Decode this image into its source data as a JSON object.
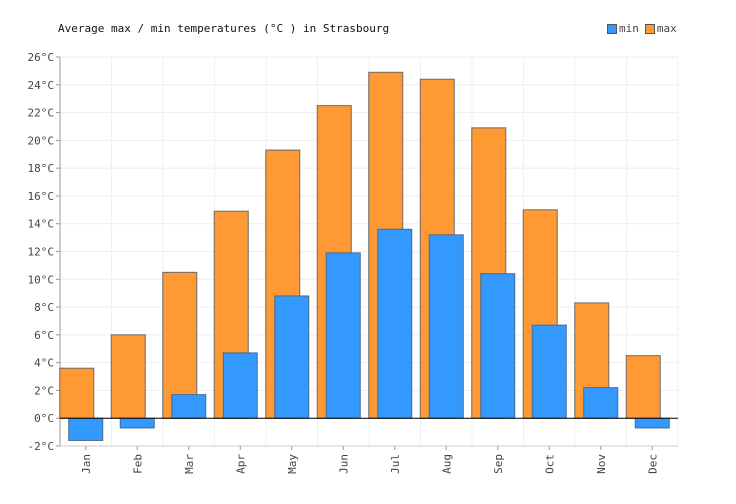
{
  "chart_data": {
    "type": "bar",
    "title": "Average max / min temperatures (°C ) in Strasbourg",
    "categories": [
      "Jan",
      "Feb",
      "Mar",
      "Apr",
      "May",
      "Jun",
      "Jul",
      "Aug",
      "Sep",
      "Oct",
      "Nov",
      "Dec"
    ],
    "series": [
      {
        "name": "min",
        "color": "#3399ff",
        "values": [
          -1.6,
          -0.7,
          1.7,
          4.7,
          8.8,
          11.9,
          13.6,
          13.2,
          10.4,
          6.7,
          2.2,
          -0.7
        ]
      },
      {
        "name": "max",
        "color": "#ff9933",
        "values": [
          3.6,
          6.0,
          10.5,
          14.9,
          19.3,
          22.5,
          24.9,
          24.4,
          20.9,
          15.0,
          8.3,
          4.5
        ]
      }
    ],
    "ylim": [
      -2,
      26
    ],
    "yticks": [
      "-2°C",
      "0°C",
      "2°C",
      "4°C",
      "6°C",
      "8°C",
      "10°C",
      "12°C",
      "14°C",
      "16°C",
      "18°C",
      "20°C",
      "22°C",
      "24°C",
      "26°C"
    ],
    "grid": true,
    "legend_position": "top-right"
  }
}
